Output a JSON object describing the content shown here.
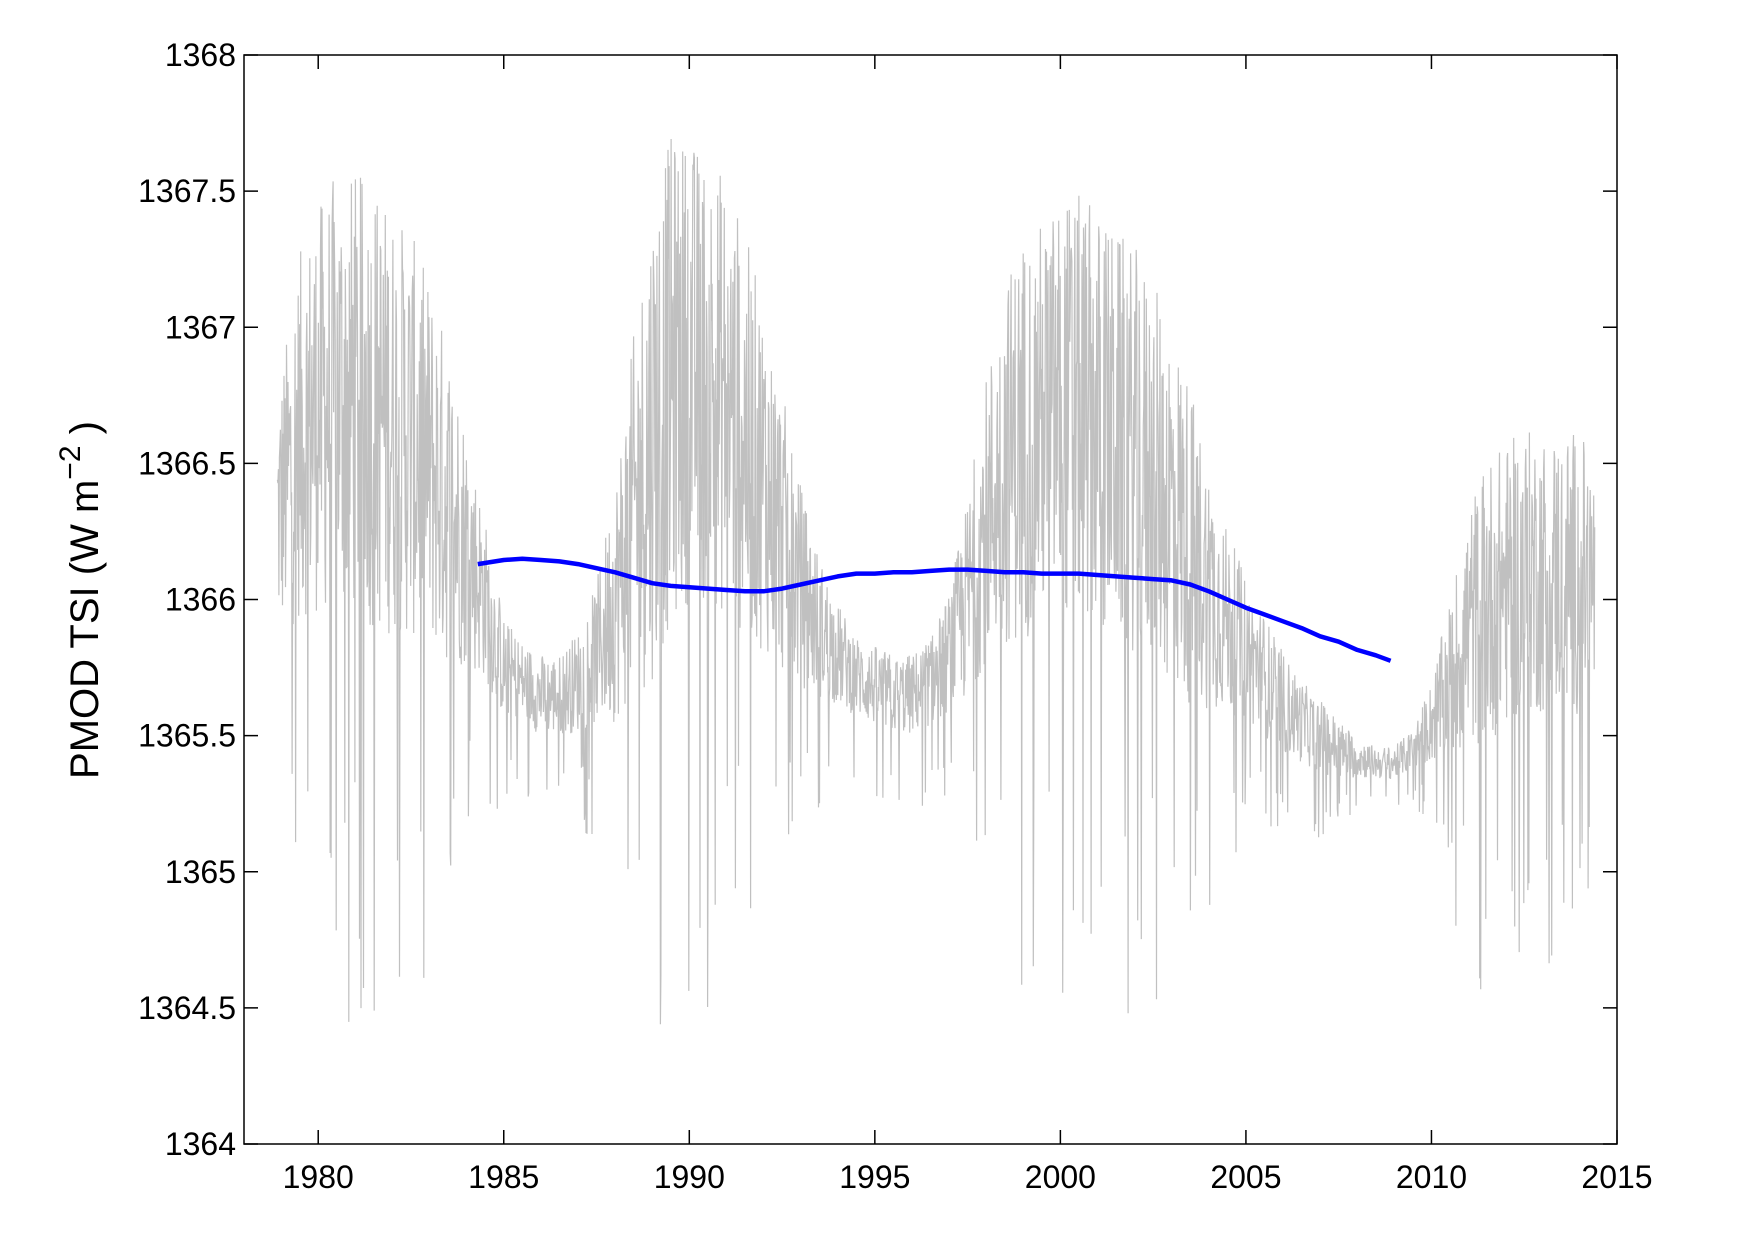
{
  "chart_data": {
    "type": "line",
    "title": "",
    "xlabel": "",
    "ylabel": {
      "prefix": "PMOD TSI (W m",
      "superscript": "−2",
      "suffix": " )"
    },
    "xlim": [
      1978.0,
      2015.0
    ],
    "ylim": [
      1364.0,
      1368.0
    ],
    "xticks": [
      "1980",
      "1985",
      "1990",
      "1995",
      "2000",
      "2005",
      "2010",
      "2015"
    ],
    "yticks": [
      "1364",
      "1364.5",
      "1365",
      "1365.5",
      "1366",
      "1366.5",
      "1367",
      "1367.5",
      "1368"
    ],
    "grid": false,
    "legend": "none",
    "series": [
      {
        "role": "daily",
        "color": "#c0c0c0",
        "x": [
          1978.9,
          1979.5,
          1980.0,
          1980.5,
          1981.0,
          1981.5,
          1982.0,
          1982.5,
          1983.0,
          1983.5,
          1984.0,
          1984.5,
          1985.0,
          1985.5,
          1986.0,
          1986.5,
          1987.0,
          1987.5,
          1988.0,
          1988.5,
          1989.0,
          1989.5,
          1990.0,
          1990.5,
          1991.0,
          1991.5,
          1992.0,
          1992.5,
          1993.0,
          1993.5,
          1994.0,
          1994.5,
          1995.0,
          1995.5,
          1996.0,
          1996.5,
          1997.0,
          1997.5,
          1998.0,
          1998.5,
          1999.0,
          1999.5,
          2000.0,
          2000.5,
          2001.0,
          2001.5,
          2002.0,
          2002.5,
          2003.0,
          2003.5,
          2004.0,
          2004.5,
          2005.0,
          2005.5,
          2006.0,
          2006.5,
          2007.0,
          2007.5,
          2008.0,
          2008.5,
          2009.0,
          2009.5,
          2010.0,
          2010.5,
          2011.0,
          2011.5,
          2012.0,
          2012.5,
          2013.0,
          2013.5,
          2014.0,
          2014.4
        ],
        "mean": [
          1366.3,
          1366.6,
          1366.7,
          1366.75,
          1366.75,
          1366.7,
          1366.65,
          1366.6,
          1366.5,
          1366.35,
          1366.2,
          1366.0,
          1365.75,
          1365.7,
          1365.65,
          1365.65,
          1365.7,
          1365.8,
          1366.0,
          1366.3,
          1366.6,
          1366.8,
          1366.85,
          1366.8,
          1366.75,
          1366.6,
          1366.45,
          1366.25,
          1366.05,
          1365.9,
          1365.8,
          1365.72,
          1365.68,
          1365.65,
          1365.65,
          1365.7,
          1365.8,
          1366.0,
          1366.3,
          1366.5,
          1366.6,
          1366.65,
          1366.7,
          1366.7,
          1366.65,
          1366.6,
          1366.55,
          1366.45,
          1366.35,
          1366.2,
          1366.05,
          1365.92,
          1365.82,
          1365.72,
          1365.62,
          1365.55,
          1365.5,
          1365.45,
          1365.42,
          1365.4,
          1365.4,
          1365.45,
          1365.55,
          1365.7,
          1365.9,
          1366.0,
          1366.05,
          1366.1,
          1366.1,
          1366.1,
          1366.1,
          1366.05
        ],
        "amplitude": [
          0.6,
          0.9,
          1.0,
          1.1,
          1.1,
          1.1,
          1.05,
          1.0,
          0.9,
          0.8,
          0.6,
          0.4,
          0.25,
          0.2,
          0.2,
          0.2,
          0.25,
          0.35,
          0.6,
          0.9,
          1.2,
          1.2,
          1.15,
          1.1,
          1.1,
          1.0,
          0.85,
          0.7,
          0.5,
          0.35,
          0.25,
          0.2,
          0.2,
          0.2,
          0.2,
          0.22,
          0.3,
          0.5,
          0.7,
          0.9,
          1.0,
          1.0,
          1.05,
          1.05,
          1.05,
          1.0,
          1.0,
          0.95,
          0.9,
          0.8,
          0.6,
          0.45,
          0.35,
          0.3,
          0.25,
          0.2,
          0.18,
          0.15,
          0.1,
          0.08,
          0.08,
          0.1,
          0.2,
          0.4,
          0.6,
          0.7,
          0.7,
          0.7,
          0.7,
          0.7,
          0.7,
          0.6
        ]
      },
      {
        "role": "running-mean",
        "color": "#0000ff",
        "x": [
          1984.3,
          1985.0,
          1985.5,
          1986.0,
          1986.5,
          1987.0,
          1987.5,
          1988.0,
          1988.5,
          1989.0,
          1989.5,
          1990.0,
          1990.5,
          1991.0,
          1991.5,
          1992.0,
          1992.5,
          1993.0,
          1993.5,
          1994.0,
          1994.5,
          1995.0,
          1995.5,
          1996.0,
          1996.5,
          1997.0,
          1997.5,
          1998.0,
          1998.5,
          1999.0,
          1999.5,
          2000.0,
          2000.5,
          2001.0,
          2001.5,
          2002.0,
          2002.5,
          2003.0,
          2003.5,
          2004.0,
          2004.5,
          2005.0,
          2005.5,
          2006.0,
          2006.5,
          2007.0,
          2007.5,
          2008.0,
          2008.5,
          2008.9
        ],
        "y": [
          1366.13,
          1366.145,
          1366.15,
          1366.145,
          1366.14,
          1366.13,
          1366.115,
          1366.1,
          1366.08,
          1366.06,
          1366.05,
          1366.045,
          1366.04,
          1366.035,
          1366.03,
          1366.03,
          1366.04,
          1366.055,
          1366.07,
          1366.085,
          1366.095,
          1366.095,
          1366.1,
          1366.1,
          1366.105,
          1366.11,
          1366.11,
          1366.105,
          1366.1,
          1366.1,
          1366.095,
          1366.095,
          1366.095,
          1366.09,
          1366.085,
          1366.08,
          1366.075,
          1366.07,
          1366.055,
          1366.03,
          1366.0,
          1365.97,
          1365.945,
          1365.92,
          1365.895,
          1365.865,
          1365.845,
          1365.815,
          1365.795,
          1365.775
        ]
      }
    ]
  }
}
